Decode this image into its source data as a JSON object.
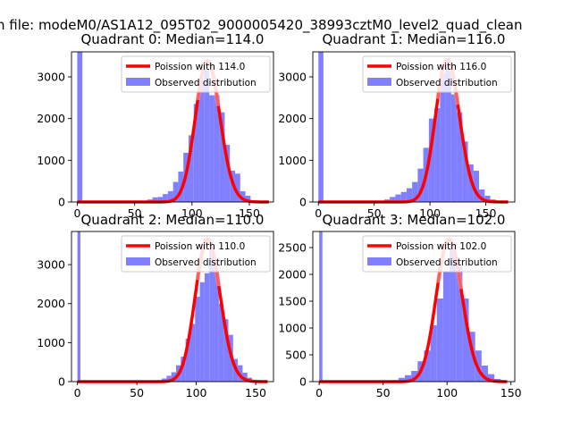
{
  "suptitle": "n file: modeM0/AS1A12_095T02_9000005420_38993cztM0_level2_quad_clean",
  "colors": {
    "hist": "#7f7fff",
    "poisson": "#ff0000",
    "axis": "#000000"
  },
  "chart_data": [
    {
      "type": "bar",
      "title": "Quadrant 0: Median=114.0",
      "median": 114.0,
      "xlim": [
        -5,
        171
      ],
      "ylim": [
        0,
        3600
      ],
      "xticks": [
        0,
        50,
        100,
        150
      ],
      "yticks": [
        0,
        1000,
        2000,
        3000
      ],
      "legend": [
        "Poission with 114.0",
        "Observed distribution"
      ],
      "legend_loc": "upper right",
      "bins": [
        [
          0,
          4.5,
          3600
        ],
        [
          61,
          65.5,
          60
        ],
        [
          65.5,
          70,
          110
        ],
        [
          70,
          74.5,
          120
        ],
        [
          74.5,
          79,
          190
        ],
        [
          79,
          83.5,
          260
        ],
        [
          83.5,
          88,
          480
        ],
        [
          88,
          92.5,
          730
        ],
        [
          92.5,
          97,
          1180
        ],
        [
          97,
          101.5,
          1600
        ],
        [
          101.5,
          106,
          2350
        ],
        [
          106,
          110.5,
          2900
        ],
        [
          110.5,
          115,
          3150
        ],
        [
          115,
          119.5,
          2560
        ],
        [
          119.5,
          124,
          2560
        ],
        [
          124,
          128.5,
          2150
        ],
        [
          128.5,
          133,
          1370
        ],
        [
          133,
          137.5,
          750
        ],
        [
          137.5,
          142,
          680
        ],
        [
          142,
          146.5,
          260
        ],
        [
          146.5,
          151,
          150
        ],
        [
          151,
          155.5,
          40
        ]
      ],
      "poisson": {
        "mean": 114.0,
        "amplitude": 3380,
        "x_range": [
          0,
          167
        ]
      }
    },
    {
      "type": "bar",
      "title": "Quadrant 1: Median=116.0",
      "median": 116.0,
      "xlim": [
        -5,
        176
      ],
      "ylim": [
        0,
        3600
      ],
      "xticks": [
        0,
        50,
        100,
        150
      ],
      "yticks": [
        0,
        1000,
        2000,
        3000
      ],
      "legend": [
        "Poission with 116.0",
        "Observed distribution"
      ],
      "legend_loc": "upper right",
      "bins": [
        [
          0,
          4.5,
          3600
        ],
        [
          59,
          64,
          60
        ],
        [
          64,
          69,
          120
        ],
        [
          69,
          74,
          180
        ],
        [
          74,
          79,
          240
        ],
        [
          79,
          84,
          330
        ],
        [
          84,
          89,
          480
        ],
        [
          89,
          94,
          800
        ],
        [
          94,
          99,
          1300
        ],
        [
          99,
          104,
          2000
        ],
        [
          104,
          109,
          2250
        ],
        [
          109,
          114,
          3100
        ],
        [
          114,
          119,
          3330
        ],
        [
          119,
          124,
          2580
        ],
        [
          124,
          129,
          2150
        ],
        [
          129,
          134,
          1450
        ],
        [
          134,
          139,
          900
        ],
        [
          139,
          144,
          750
        ],
        [
          144,
          149,
          300
        ],
        [
          149,
          154,
          150
        ],
        [
          154,
          159,
          60
        ]
      ],
      "poisson": {
        "mean": 116.0,
        "amplitude": 3400,
        "x_range": [
          0,
          170
        ]
      }
    },
    {
      "type": "bar",
      "title": "Quadrant 2: Median=110.0",
      "median": 110.0,
      "xlim": [
        -5,
        165
      ],
      "ylim": [
        0,
        3850
      ],
      "xticks": [
        0,
        50,
        100,
        150
      ],
      "yticks": [
        0,
        1000,
        2000,
        3000
      ],
      "legend": [
        "Poission with 110.0",
        "Observed distribution"
      ],
      "legend_loc": "upper right",
      "bins": [
        [
          0,
          2.5,
          3850
        ],
        [
          67,
          71,
          40
        ],
        [
          71,
          75,
          80
        ],
        [
          75,
          79,
          150
        ],
        [
          79,
          83,
          240
        ],
        [
          83,
          87,
          420
        ],
        [
          87,
          91,
          640
        ],
        [
          91,
          95,
          1100
        ],
        [
          95,
          99,
          1480
        ],
        [
          99,
          103,
          2180
        ],
        [
          103,
          107,
          2550
        ],
        [
          107,
          111,
          2780
        ],
        [
          111,
          115,
          3420
        ],
        [
          115,
          119,
          2850
        ],
        [
          119,
          123,
          2000
        ],
        [
          123,
          127,
          1600
        ],
        [
          127,
          131,
          1200
        ],
        [
          131,
          135,
          580
        ],
        [
          135,
          139,
          420
        ],
        [
          139,
          143,
          230
        ],
        [
          143,
          147,
          100
        ],
        [
          147,
          151,
          50
        ]
      ],
      "poisson": {
        "mean": 110.0,
        "amplitude": 3650,
        "x_range": [
          0,
          160
        ]
      }
    },
    {
      "type": "bar",
      "title": "Quadrant 3: Median=102.0",
      "median": 102.0,
      "xlim": [
        -5,
        153
      ],
      "ylim": [
        0,
        2800
      ],
      "xticks": [
        0,
        50,
        100,
        150
      ],
      "yticks": [
        0,
        500,
        1000,
        1500,
        2000,
        2500
      ],
      "legend": [
        "Poission with 102.0",
        "Observed distribution"
      ],
      "legend_loc": "upper right",
      "bins": [
        [
          0,
          2.5,
          2800
        ],
        [
          57,
          62,
          30
        ],
        [
          62,
          67,
          70
        ],
        [
          67,
          72,
          120
        ],
        [
          72,
          77,
          200
        ],
        [
          77,
          82,
          380
        ],
        [
          82,
          87,
          580
        ],
        [
          87,
          92,
          1050
        ],
        [
          92,
          97,
          1550
        ],
        [
          97,
          102,
          2050
        ],
        [
          102,
          107,
          2560
        ],
        [
          107,
          112,
          2150
        ],
        [
          112,
          117,
          1550
        ],
        [
          117,
          122,
          930
        ],
        [
          122,
          127,
          580
        ],
        [
          127,
          132,
          300
        ],
        [
          132,
          137,
          140
        ],
        [
          137,
          142,
          50
        ]
      ],
      "poisson": {
        "mean": 102.0,
        "amplitude": 2650,
        "x_range": [
          0,
          147
        ]
      }
    }
  ]
}
